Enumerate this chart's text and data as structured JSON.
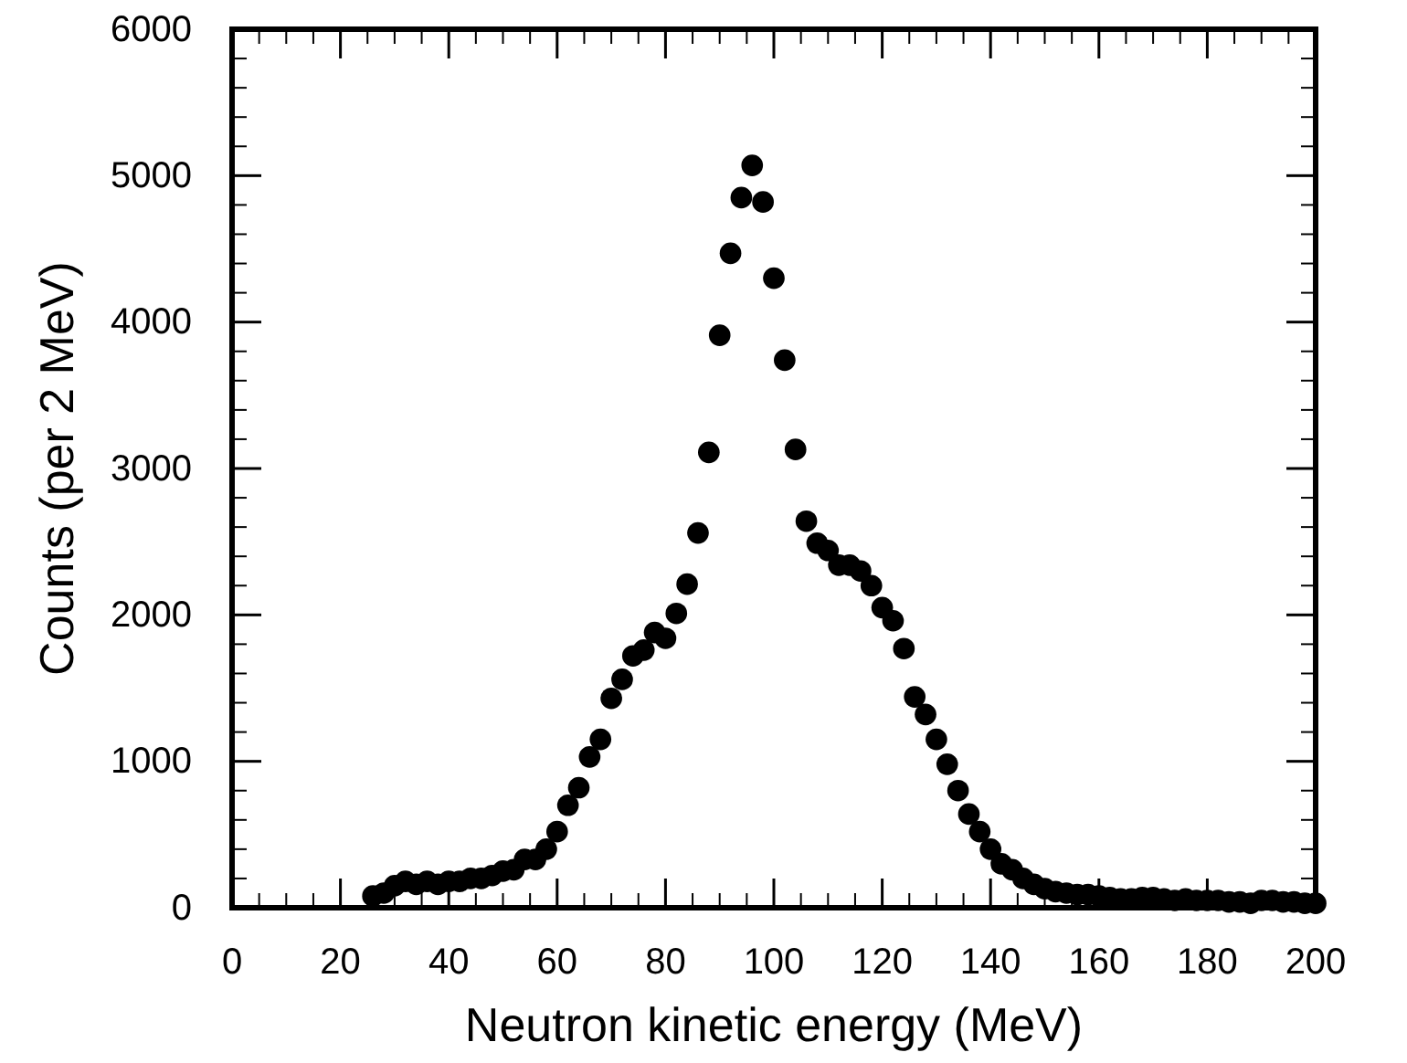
{
  "chart_data": {
    "type": "scatter",
    "xlabel": "Neutron kinetic energy (MeV)",
    "ylabel": "Counts (per 2 MeV)",
    "x": [
      26,
      28,
      30,
      32,
      34,
      36,
      38,
      40,
      42,
      44,
      46,
      48,
      50,
      52,
      54,
      56,
      58,
      60,
      62,
      64,
      66,
      68,
      70,
      72,
      74,
      76,
      78,
      80,
      82,
      84,
      86,
      88,
      90,
      92,
      94,
      96,
      98,
      100,
      102,
      104,
      106,
      108,
      110,
      112,
      114,
      116,
      118,
      120,
      122,
      124,
      126,
      128,
      130,
      132,
      134,
      136,
      138,
      140,
      142,
      144,
      146,
      148,
      150,
      152,
      154,
      156,
      158,
      160,
      162,
      164,
      166,
      168,
      170,
      172,
      174,
      176,
      178,
      180,
      182,
      184,
      186,
      188,
      190,
      192,
      194,
      196,
      198,
      200
    ],
    "series": [
      {
        "color": "#000000",
        "values": [
          80,
          100,
          150,
          180,
          160,
          180,
          160,
          180,
          180,
          200,
          200,
          220,
          250,
          260,
          330,
          330,
          400,
          520,
          700,
          820,
          1030,
          1150,
          1430,
          1560,
          1720,
          1760,
          1880,
          1840,
          2010,
          2210,
          2560,
          3110,
          3910,
          4470,
          4850,
          5070,
          4820,
          4300,
          3740,
          3130,
          2640,
          2490,
          2440,
          2340,
          2340,
          2300,
          2200,
          2050,
          1960,
          1770,
          1440,
          1320,
          1150,
          980,
          800,
          640,
          520,
          400,
          300,
          260,
          200,
          160,
          130,
          110,
          100,
          90,
          90,
          80,
          70,
          60,
          60,
          70,
          70,
          60,
          50,
          60,
          50,
          50,
          50,
          40,
          40,
          30,
          50,
          50,
          40,
          40,
          30,
          30
        ]
      }
    ],
    "marker": "circle",
    "xlim": [
      0,
      200
    ],
    "xticks": [
      0,
      20,
      40,
      60,
      80,
      100,
      120,
      140,
      160,
      180,
      200
    ],
    "ylim": [
      0,
      6000
    ],
    "yticks": [
      0,
      1000,
      2000,
      3000,
      4000,
      5000,
      6000
    ],
    "grid": false
  }
}
